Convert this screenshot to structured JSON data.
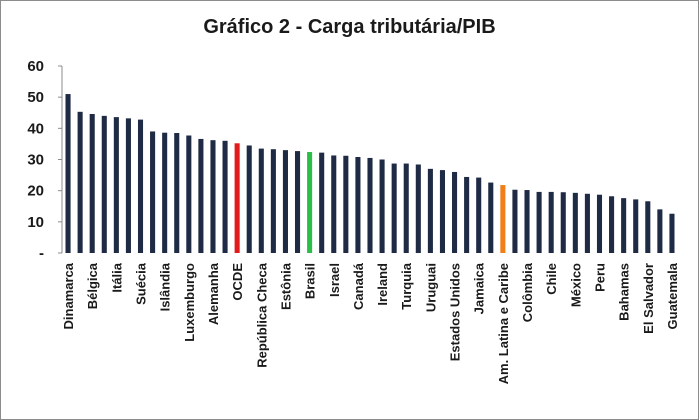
{
  "chart_data": {
    "type": "bar",
    "title": "Gráfico 2 - Carga tributária/PIB",
    "xlabel": "",
    "ylabel": "",
    "ylim": [
      0,
      60
    ],
    "yticks": [
      "-",
      "10",
      "20",
      "30",
      "40",
      "50",
      "60"
    ],
    "grid": false,
    "legend": "none",
    "categories": [
      "Dinamarca",
      "",
      "Bélgica",
      "",
      "Itália",
      "",
      "Suécia",
      "",
      "Islândia",
      "",
      "Luxemburgo",
      "",
      "Alemanha",
      "",
      "OCDE",
      "",
      "República Checa",
      "",
      "Estônia",
      "",
      "Brasil",
      "",
      "Israel",
      "",
      "Canadá",
      "",
      "Ireland",
      "",
      "Turquia",
      "",
      "Uruguai",
      "",
      "Estados Unidos",
      "",
      "Jamaica",
      "",
      "Am. Latina e Caribe",
      "",
      "Colômbia",
      "",
      "Chile",
      "",
      "México",
      "",
      "Peru",
      "",
      "Bahamas",
      "",
      "El Salvador",
      "",
      "Guatemala"
    ],
    "values": [
      51.0,
      45.3,
      44.6,
      44.0,
      43.6,
      43.2,
      42.8,
      39.0,
      38.6,
      38.5,
      37.7,
      36.6,
      36.2,
      36.0,
      35.2,
      34.5,
      33.5,
      33.3,
      33.0,
      32.7,
      32.4,
      32.2,
      31.3,
      31.2,
      30.8,
      30.5,
      30.0,
      28.7,
      28.7,
      28.4,
      27.0,
      26.6,
      26.0,
      24.4,
      24.2,
      22.6,
      21.8,
      20.3,
      20.2,
      19.6,
      19.6,
      19.5,
      19.3,
      19.0,
      18.7,
      18.2,
      17.6,
      17.2,
      16.6,
      14.0,
      12.6
    ],
    "bar_colors": {
      "default": "#1f2a44",
      "highlight": {
        "OCDE": "#e31a1c",
        "Brasil": "#2dbe4a",
        "Am. Latina e Caribe": "#f07f1a"
      }
    }
  }
}
